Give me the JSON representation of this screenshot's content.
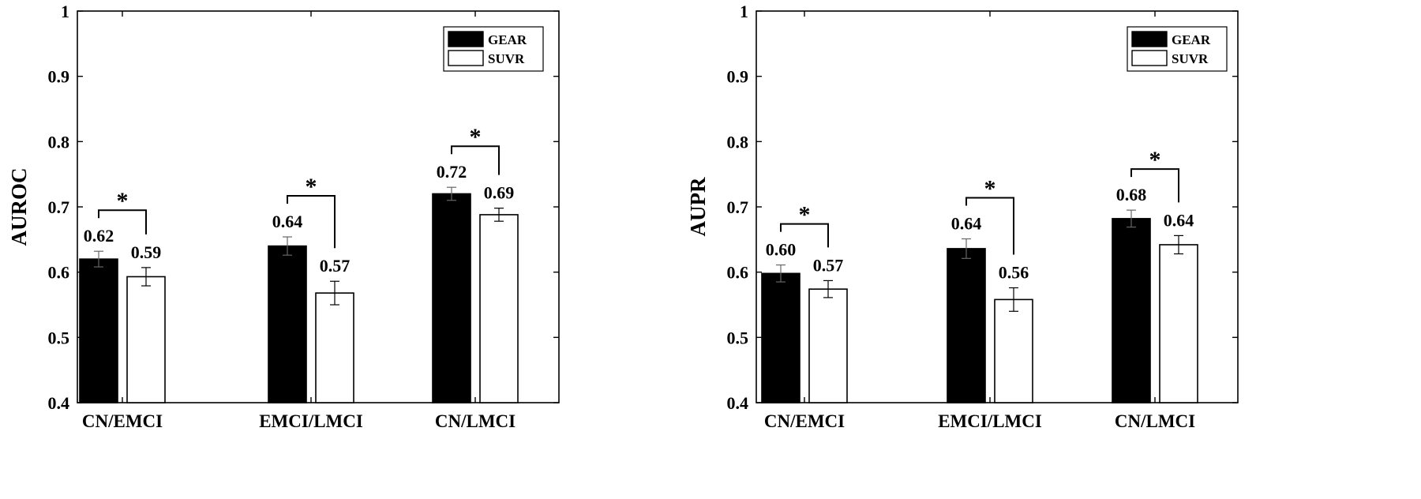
{
  "chart_data": [
    {
      "type": "bar",
      "ylabel": "AUROC",
      "ylim": [
        0.4,
        1
      ],
      "yticks": [
        "0.4",
        "0.5",
        "0.6",
        "0.7",
        "0.8",
        "0.9",
        "1"
      ],
      "categories": [
        "CN/EMCI",
        "EMCI/LMCI",
        "CN/LMCI"
      ],
      "series": [
        {
          "name": "GEAR",
          "color": "#000000",
          "values": [
            0.62,
            0.64,
            0.72
          ],
          "errors": [
            0.012,
            0.014,
            0.01
          ],
          "labels": [
            "0.62",
            "0.64",
            "0.72"
          ]
        },
        {
          "name": "SUVR",
          "color": "#ffffff",
          "values": [
            0.593,
            0.568,
            0.688
          ],
          "errors": [
            0.014,
            0.018,
            0.01
          ],
          "labels": [
            "0.59",
            "0.57",
            "0.69"
          ]
        }
      ],
      "significance": [
        "*",
        "*",
        "*"
      ],
      "legend": "top-right",
      "grid": false
    },
    {
      "type": "bar",
      "ylabel": "AUPR",
      "ylim": [
        0.4,
        1
      ],
      "yticks": [
        "0.4",
        "0.5",
        "0.6",
        "0.7",
        "0.8",
        "0.9",
        "1"
      ],
      "categories": [
        "CN/EMCI",
        "EMCI/LMCI",
        "CN/LMCI"
      ],
      "series": [
        {
          "name": "GEAR",
          "color": "#000000",
          "values": [
            0.598,
            0.636,
            0.682
          ],
          "errors": [
            0.013,
            0.015,
            0.013
          ],
          "labels": [
            "0.60",
            "0.64",
            "0.68"
          ]
        },
        {
          "name": "SUVR",
          "color": "#ffffff",
          "values": [
            0.574,
            0.558,
            0.642
          ],
          "errors": [
            0.013,
            0.018,
            0.014
          ],
          "labels": [
            "0.57",
            "0.56",
            "0.64"
          ]
        }
      ],
      "significance": [
        "*",
        "*",
        "*"
      ],
      "legend": "top-right",
      "grid": false
    }
  ]
}
